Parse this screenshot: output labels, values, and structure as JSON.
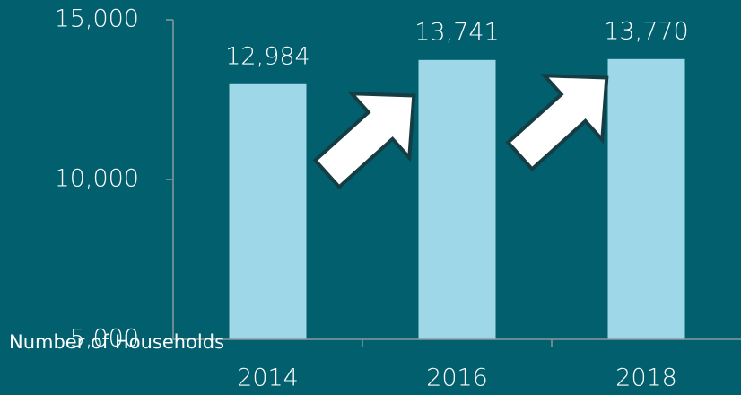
{
  "chart_data": {
    "type": "bar",
    "y_axis_label": "Number of Households",
    "categories": [
      "2014",
      "2016",
      "2018"
    ],
    "values": [
      12984,
      13741,
      13770
    ],
    "value_labels": [
      "12,984",
      "13,741",
      "13,770"
    ],
    "color": "#9ed8e8",
    "ylim": [
      5000,
      15000
    ],
    "yticks": [
      {
        "value": 5000,
        "label": "5,000"
      },
      {
        "value": 10000,
        "label": "10,000"
      },
      {
        "value": 15000,
        "label": "15,000"
      }
    ]
  }
}
